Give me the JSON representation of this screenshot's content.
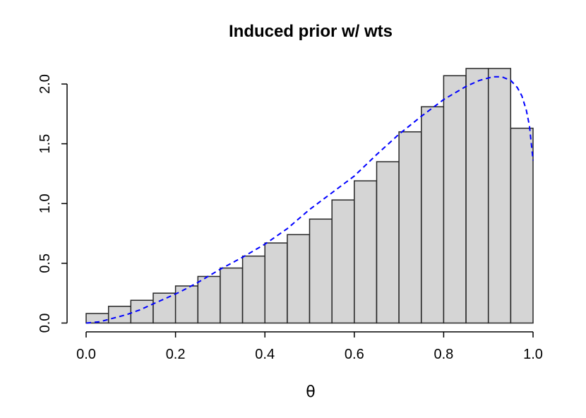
{
  "figure": {
    "background": "#ffffff",
    "axis_color": "#000000",
    "text_color": "#000000"
  },
  "chart_data": {
    "type": "bar",
    "subtype": "histogram-with-density-curve",
    "title": "Induced prior w/ wts",
    "xlabel": "θ",
    "ylabel": "",
    "xlim": [
      0.0,
      1.0
    ],
    "ylim": [
      0.0,
      2.13
    ],
    "grid": false,
    "legend": "none",
    "bin_start": 0.0,
    "bin_width": 0.05,
    "bar_fill": "#d5d5d5",
    "bar_stroke": "#262626",
    "bar_values": [
      0.08,
      0.14,
      0.19,
      0.25,
      0.31,
      0.39,
      0.46,
      0.56,
      0.67,
      0.74,
      0.87,
      1.03,
      1.19,
      1.35,
      1.6,
      1.81,
      2.07,
      2.13,
      2.13,
      1.63
    ],
    "x_ticks": [
      {
        "v": 0.0,
        "label": "0.0"
      },
      {
        "v": 0.2,
        "label": "0.2"
      },
      {
        "v": 0.4,
        "label": "0.4"
      },
      {
        "v": 0.6,
        "label": "0.6"
      },
      {
        "v": 0.8,
        "label": "0.8"
      },
      {
        "v": 1.0,
        "label": "1.0"
      }
    ],
    "y_ticks": [
      {
        "v": 0.0,
        "label": "0.0"
      },
      {
        "v": 0.5,
        "label": "0.5"
      },
      {
        "v": 1.0,
        "label": "1.0"
      },
      {
        "v": 1.5,
        "label": "1.5"
      },
      {
        "v": 2.0,
        "label": "2.0"
      }
    ],
    "curve": {
      "name": "density-curve",
      "color": "#0000ff",
      "line_style": "dashed",
      "points": [
        [
          0.0,
          0.0
        ],
        [
          0.03,
          0.01
        ],
        [
          0.06,
          0.04
        ],
        [
          0.09,
          0.07
        ],
        [
          0.12,
          0.11
        ],
        [
          0.15,
          0.16
        ],
        [
          0.18,
          0.21
        ],
        [
          0.21,
          0.26
        ],
        [
          0.25,
          0.34
        ],
        [
          0.3,
          0.45
        ],
        [
          0.35,
          0.55
        ],
        [
          0.4,
          0.66
        ],
        [
          0.45,
          0.79
        ],
        [
          0.5,
          0.95
        ],
        [
          0.55,
          1.09
        ],
        [
          0.6,
          1.23
        ],
        [
          0.65,
          1.41
        ],
        [
          0.7,
          1.58
        ],
        [
          0.75,
          1.73
        ],
        [
          0.8,
          1.87
        ],
        [
          0.85,
          1.98
        ],
        [
          0.88,
          2.03
        ],
        [
          0.91,
          2.06
        ],
        [
          0.93,
          2.06
        ],
        [
          0.95,
          2.03
        ],
        [
          0.965,
          1.97
        ],
        [
          0.975,
          1.9
        ],
        [
          0.985,
          1.78
        ],
        [
          0.992,
          1.65
        ],
        [
          1.0,
          1.36
        ]
      ]
    }
  }
}
